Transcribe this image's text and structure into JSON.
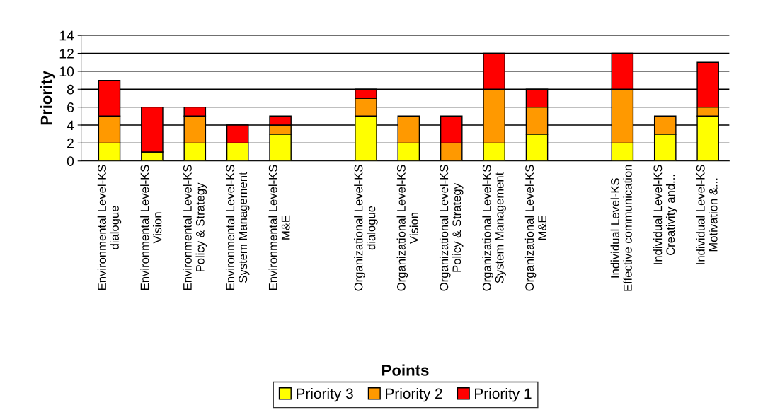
{
  "chart_data": {
    "type": "bar",
    "stacked": true,
    "xlabel": "Points",
    "ylabel": "Priority",
    "categories": [
      "Environmental Level-KS\ndialogue",
      "Environmental Level-KS\nVision",
      "Environmental Level-KS\nPolicy & Strategy",
      "Environmental Level-KS\nSystem Management",
      "Environmental Level-KS\nM&E",
      null,
      "Organizational Level-KS\ndialogue",
      "Organizational Level-KS\nVision",
      "Organizational Level-KS\nPolicy & Strategy",
      "Organizational Level-KS\nSystem Management",
      "Organizational Level-KS\nM&E",
      null,
      "Individual Level-KS\nEffective communication",
      "Individual Level-KS\nCreativity and...",
      "Individual Level-KS\nMotivation &..."
    ],
    "series": [
      {
        "name": "Priority 3",
        "color": "#ffff00",
        "values": [
          2,
          1,
          2,
          2,
          3,
          null,
          5,
          2,
          0,
          2,
          3,
          null,
          2,
          3,
          5
        ]
      },
      {
        "name": "Priority 2",
        "color": "#ff9900",
        "values": [
          3,
          0,
          3,
          0,
          1,
          null,
          2,
          3,
          2,
          6,
          3,
          null,
          6,
          2,
          1
        ]
      },
      {
        "name": "Priority 1",
        "color": "#ff0000",
        "values": [
          4,
          5,
          1,
          2,
          1,
          null,
          1,
          0,
          3,
          4,
          2,
          null,
          4,
          0,
          5
        ]
      }
    ],
    "ylim": [
      0,
      14
    ],
    "yticks": [
      0,
      2,
      4,
      6,
      8,
      10,
      12,
      14
    ],
    "grid": "y",
    "legend": "bottom"
  }
}
